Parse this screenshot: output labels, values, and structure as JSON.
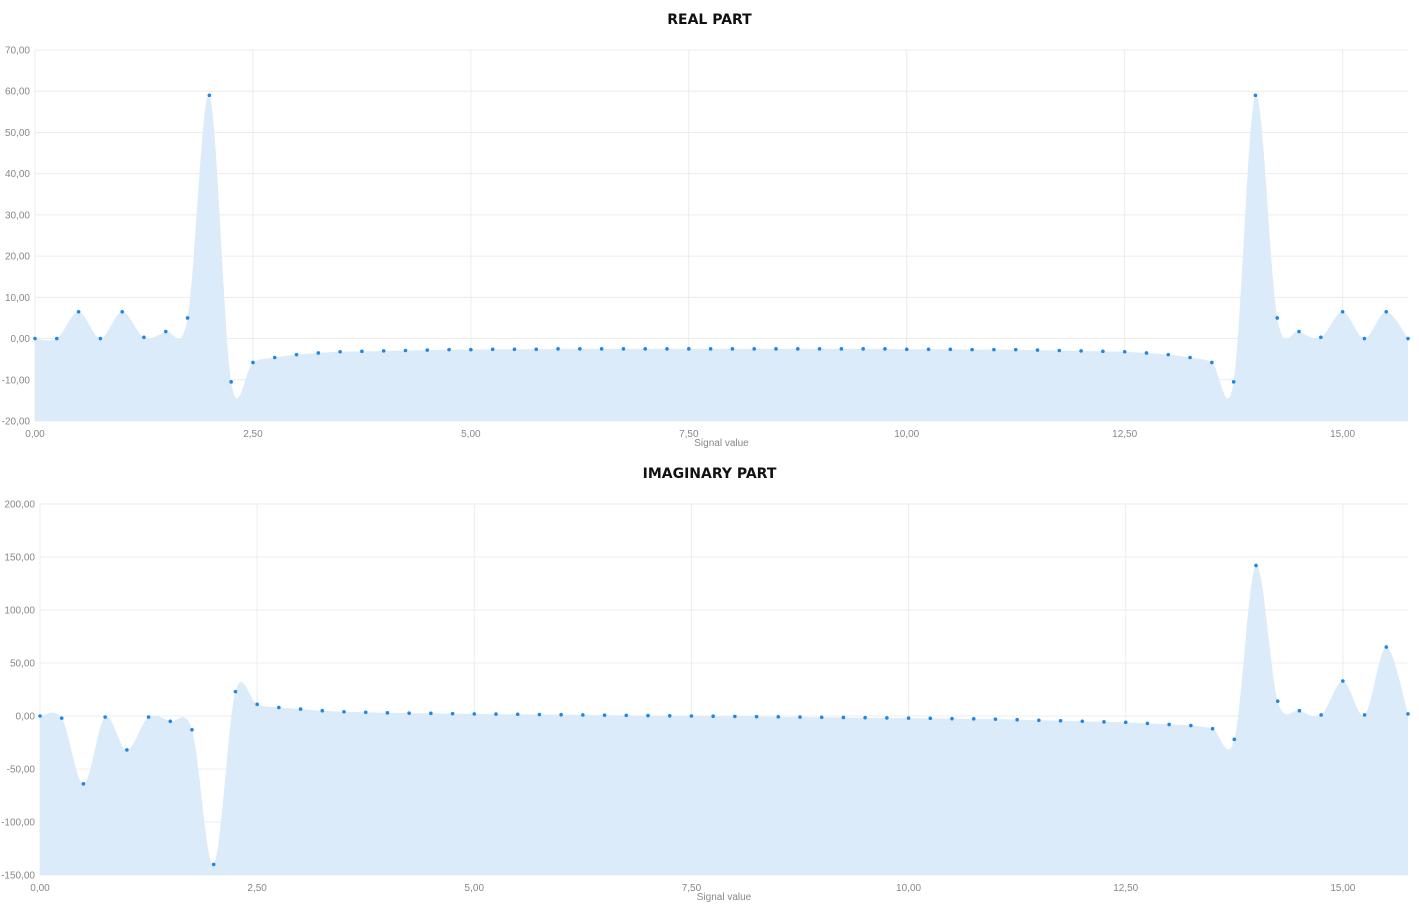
{
  "chart_data": [
    {
      "type": "area",
      "title": "REAL PART",
      "xlabel": "Signal value",
      "ylabel": "",
      "xlim": [
        0,
        15.75
      ],
      "ylim": [
        -20,
        70
      ],
      "grid": true,
      "x_ticks": [
        "0,00",
        "2,50",
        "5,00",
        "7,50",
        "10,00",
        "12,50",
        "15,00"
      ],
      "x_tick_values": [
        0,
        2.5,
        5,
        7.5,
        10,
        12.5,
        15
      ],
      "y_ticks": [
        "70,00",
        "60,00",
        "50,00",
        "40,00",
        "30,00",
        "20,00",
        "10,00",
        "0,00",
        "-10,00",
        "-20,00"
      ],
      "y_tick_values": [
        70,
        60,
        50,
        40,
        30,
        20,
        10,
        0,
        -10,
        -20
      ],
      "x": [
        0,
        0.25,
        0.5,
        0.75,
        1,
        1.25,
        1.5,
        1.75,
        2,
        2.25,
        2.5,
        2.75,
        3,
        3.25,
        3.5,
        3.75,
        4,
        4.25,
        4.5,
        4.75,
        5,
        5.25,
        5.5,
        5.75,
        6,
        6.25,
        6.5,
        6.75,
        7,
        7.25,
        7.5,
        7.75,
        8,
        8.25,
        8.5,
        8.75,
        9,
        9.25,
        9.5,
        9.75,
        10,
        10.25,
        10.5,
        10.75,
        11,
        11.25,
        11.5,
        11.75,
        12,
        12.25,
        12.5,
        12.75,
        13,
        13.25,
        13.5,
        13.75,
        14,
        14.25,
        14.5,
        14.75,
        15,
        15.25,
        15.5,
        15.75
      ],
      "series": [
        {
          "values": [
            0,
            0,
            6.5,
            0,
            6.5,
            0.3,
            1.7,
            5,
            59,
            -10.5,
            -5.8,
            -4.6,
            -3.9,
            -3.5,
            -3.2,
            -3.1,
            -3,
            -2.9,
            -2.8,
            -2.7,
            -2.7,
            -2.6,
            -2.6,
            -2.6,
            -2.5,
            -2.5,
            -2.5,
            -2.5,
            -2.5,
            -2.5,
            -2.5,
            -2.5,
            -2.5,
            -2.5,
            -2.5,
            -2.5,
            -2.5,
            -2.5,
            -2.5,
            -2.5,
            -2.6,
            -2.6,
            -2.6,
            -2.7,
            -2.7,
            -2.7,
            -2.8,
            -2.9,
            -3,
            -3.1,
            -3.2,
            -3.5,
            -3.9,
            -4.6,
            -5.8,
            -10.5,
            59,
            5,
            1.7,
            0.3,
            6.5,
            0,
            6.5,
            0
          ]
        }
      ]
    },
    {
      "type": "area",
      "title": "IMAGINARY PART",
      "xlabel": "Signal value",
      "ylabel": "",
      "xlim": [
        0,
        15.75
      ],
      "ylim": [
        -150,
        200
      ],
      "grid": true,
      "x_ticks": [
        "0,00",
        "2,50",
        "5,00",
        "7,50",
        "10,00",
        "12,50",
        "15,00"
      ],
      "x_tick_values": [
        0,
        2.5,
        5,
        7.5,
        10,
        12.5,
        15
      ],
      "y_ticks": [
        "200,00",
        "150,00",
        "100,00",
        "50,00",
        "0,00",
        "-50,00",
        "-100,00",
        "-150,00"
      ],
      "y_tick_values": [
        200,
        150,
        100,
        50,
        0,
        -50,
        -100,
        -150
      ],
      "x": [
        0,
        0.25,
        0.5,
        0.75,
        1,
        1.25,
        1.5,
        1.75,
        2,
        2.25,
        2.5,
        2.75,
        3,
        3.25,
        3.5,
        3.75,
        4,
        4.25,
        4.5,
        4.75,
        5,
        5.25,
        5.5,
        5.75,
        6,
        6.25,
        6.5,
        6.75,
        7,
        7.25,
        7.5,
        7.75,
        8,
        8.25,
        8.5,
        8.75,
        9,
        9.25,
        9.5,
        9.75,
        10,
        10.25,
        10.5,
        10.75,
        11,
        11.25,
        11.5,
        11.75,
        12,
        12.25,
        12.5,
        12.75,
        13,
        13.25,
        13.5,
        13.75,
        14,
        14.25,
        14.5,
        14.75,
        15,
        15.25,
        15.5,
        15.75
      ],
      "series": [
        {
          "values": [
            0,
            -2,
            -64,
            -1,
            -32,
            -1,
            -5,
            -13,
            -140,
            23,
            11,
            8,
            6.5,
            5,
            4,
            3.5,
            3,
            2.7,
            2.5,
            2.2,
            2,
            1.8,
            1.6,
            1.4,
            1.2,
            1,
            0.8,
            0.6,
            0.4,
            0.2,
            0,
            -0.2,
            -0.4,
            -0.6,
            -0.8,
            -1,
            -1.2,
            -1.4,
            -1.6,
            -1.8,
            -2,
            -2.2,
            -2.5,
            -2.7,
            -3,
            -3.5,
            -4,
            -4.5,
            -5,
            -5.5,
            -6,
            -7,
            -8,
            -9,
            -12,
            -22,
            142,
            14,
            5,
            1,
            33,
            1,
            65,
            2
          ]
        }
      ]
    }
  ],
  "colors": {
    "fill": "#dcebfa",
    "point": "#1e88e5",
    "grid": "#ececec",
    "tick_text": "#888888",
    "title_text": "#111111"
  }
}
